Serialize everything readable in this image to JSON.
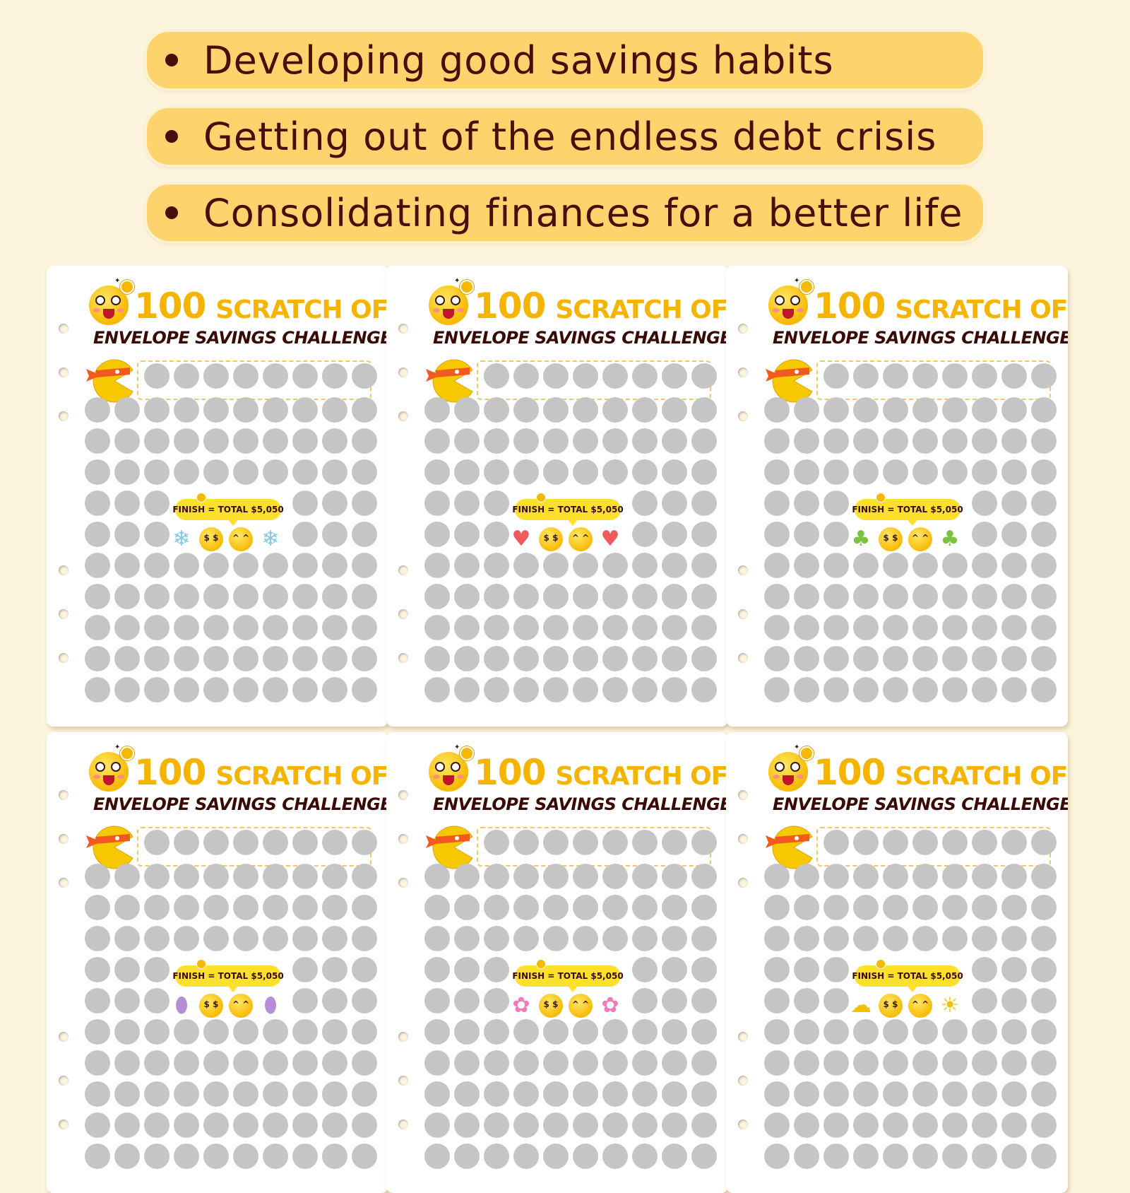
{
  "bullets": [
    "Developing good savings habits",
    "Getting out of the endless debt crisis",
    "Consolidating finances for a better life"
  ],
  "card": {
    "title_number": "100",
    "title_words": "SCRATCH OFF",
    "subtitle": "ENVELOPE SAVINGS CHALLENGE",
    "finish_text": "FINISH = TOTAL $5,050",
    "face_left_glyph": "$ $",
    "face_right_glyph": "^ ^"
  },
  "cards": [
    {
      "theme": "snowflake",
      "deco_glyph": "❄",
      "deco_color": "#7fc9e8"
    },
    {
      "theme": "heart",
      "deco_glyph": "♥",
      "deco_color": "#ef5a5a"
    },
    {
      "theme": "clover",
      "deco_glyph": "♣",
      "deco_color": "#7cc242"
    },
    {
      "theme": "easter-egg",
      "deco_glyph": "⬮",
      "deco_color": "#b48fd6"
    },
    {
      "theme": "flower",
      "deco_glyph": "✿",
      "deco_color": "#f27ab8"
    },
    {
      "theme": "weather",
      "deco_glyph": "☁",
      "deco_glyph_right": "☀",
      "deco_color": "#f5c000"
    }
  ],
  "colors": {
    "background": "#fdf4dd",
    "bullet_fill": "#fdd36e",
    "bullet_text": "#4a0d08",
    "title_yellow": "#f5b400",
    "subtitle_dark": "#3a0a06",
    "scratch_circle": "#c5c5c5"
  }
}
